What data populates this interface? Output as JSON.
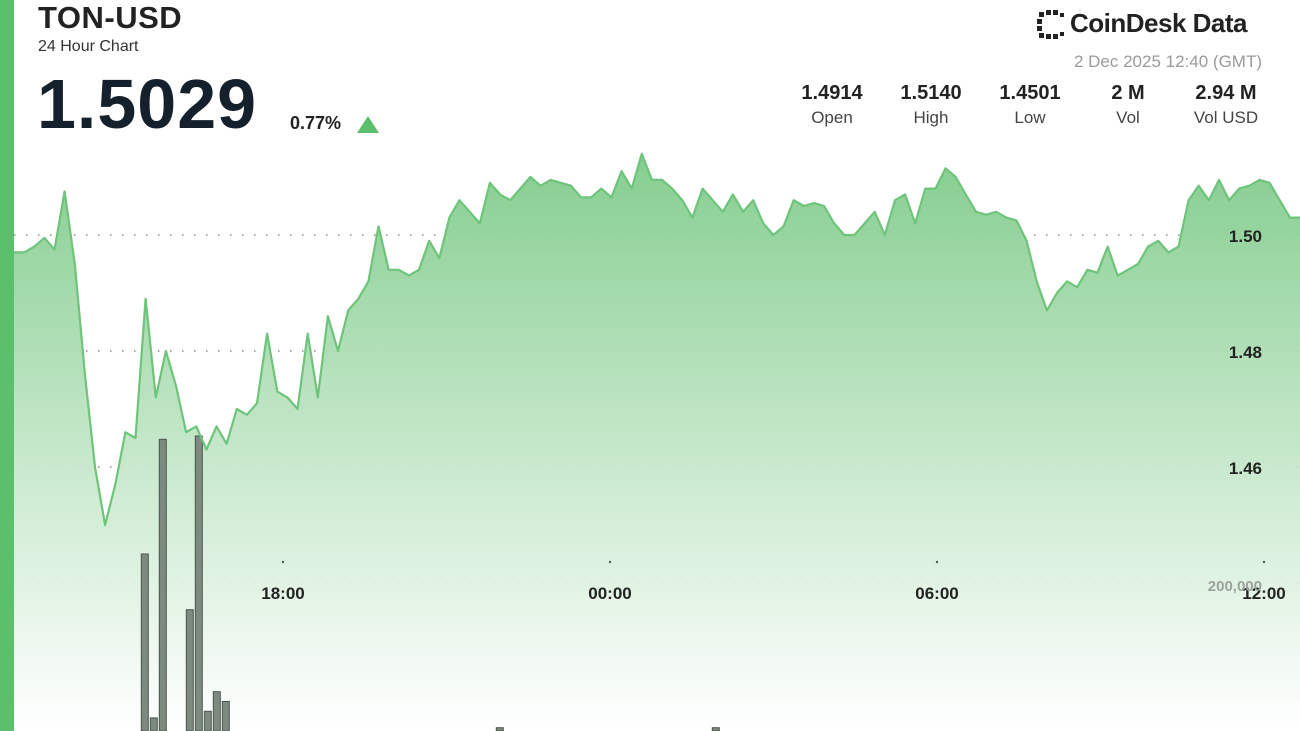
{
  "header": {
    "symbol": "TON-USD",
    "subtitle": "24 Hour Chart",
    "price": "1.5029",
    "change": "0.77%",
    "change_direction_icon": "triangle-up-icon",
    "logo_text": "CoinDesk Data",
    "logo_icon": "coindesk-logo-icon",
    "timestamp": "2 Dec 2025 12:40 (GMT)"
  },
  "stats": [
    {
      "value": "1.4914",
      "label": "Open"
    },
    {
      "value": "1.5140",
      "label": "High"
    },
    {
      "value": "1.4501",
      "label": "Low"
    },
    {
      "value": "2 M",
      "label": "Vol"
    },
    {
      "value": "2.94 M",
      "label": "Vol USD"
    }
  ],
  "colors": {
    "accent": "#5cbf6c",
    "line": "#6ec47a",
    "fill_top": "#7fcb8a",
    "volume_bar": "#7d8a80"
  },
  "chart_data": {
    "type": "area",
    "x_ticks": [
      "18:00",
      "00:00",
      "06:00",
      "12:00"
    ],
    "y_ticks": [
      1.5,
      1.48,
      1.46
    ],
    "ylim": [
      1.44,
      1.52
    ],
    "volume_tick_label": "200,000",
    "grid": "dotted horizontal",
    "price_series": [
      1.497,
      1.497,
      1.498,
      1.4995,
      1.4975,
      1.5075,
      1.495,
      1.476,
      1.46,
      1.45,
      1.457,
      1.466,
      1.465,
      1.489,
      1.472,
      1.48,
      1.474,
      1.466,
      1.467,
      1.463,
      1.467,
      1.464,
      1.47,
      1.469,
      1.471,
      1.483,
      1.473,
      1.472,
      1.47,
      1.483,
      1.472,
      1.486,
      1.48,
      1.487,
      1.489,
      1.492,
      1.5015,
      1.494,
      1.494,
      1.493,
      1.494,
      1.499,
      1.496,
      1.503,
      1.506,
      1.504,
      1.502,
      1.509,
      1.507,
      1.506,
      1.508,
      1.51,
      1.5085,
      1.5095,
      1.509,
      1.5085,
      1.5065,
      1.5065,
      1.508,
      1.5065,
      1.511,
      1.508,
      1.514,
      1.5095,
      1.5095,
      1.508,
      1.506,
      1.503,
      1.508,
      1.506,
      1.504,
      1.507,
      1.504,
      1.506,
      1.502,
      1.5,
      1.5015,
      1.506,
      1.505,
      1.5055,
      1.505,
      1.502,
      1.5,
      1.5,
      1.502,
      1.504,
      1.5,
      1.506,
      1.507,
      1.502,
      1.508,
      1.508,
      1.5115,
      1.51,
      1.507,
      1.504,
      1.5035,
      1.504,
      1.503,
      1.5025,
      1.499,
      1.492,
      1.487,
      1.49,
      1.492,
      1.491,
      1.494,
      1.4935,
      1.498,
      1.493,
      1.494,
      1.495,
      1.498,
      1.499,
      1.497,
      1.498,
      1.506,
      1.5085,
      1.506,
      1.5095,
      1.506,
      1.508,
      1.5085,
      1.5095,
      1.509,
      1.506,
      1.503,
      1.503
    ],
    "volume_series": [
      0,
      0,
      0,
      0,
      0,
      0,
      0,
      0,
      0,
      0,
      0,
      0,
      0,
      0,
      0,
      0,
      0,
      0,
      0,
      0,
      0,
      0,
      0,
      0,
      0,
      0,
      0,
      0,
      0,
      0,
      0,
      0,
      0,
      0,
      0,
      0,
      0,
      0,
      0,
      0,
      0,
      0,
      0,
      0,
      0,
      0,
      0,
      0,
      0,
      0,
      0,
      0,
      0,
      0,
      0,
      0,
      0,
      0,
      0,
      0,
      0,
      0,
      0,
      0,
      0,
      0,
      0,
      0,
      0,
      0,
      0,
      0,
      0,
      0,
      0,
      0,
      0,
      0,
      0,
      0,
      0,
      0,
      0,
      0,
      0,
      0,
      0,
      0,
      0,
      0,
      0,
      0,
      0,
      0,
      0,
      0,
      0,
      0,
      0,
      0,
      0,
      0,
      0,
      0,
      0,
      0,
      0,
      0,
      0,
      0,
      0,
      0,
      0,
      0,
      0,
      0,
      0,
      0,
      0,
      0,
      0,
      0,
      0,
      0,
      0,
      0,
      0,
      0,
      0,
      0,
      0
    ]
  },
  "volume_bars": [
    {
      "x": 0.09,
      "v": 0
    },
    {
      "x": 0.092,
      "v": 0
    },
    {
      "x": 0.099,
      "v": 540000
    },
    {
      "x": 0.106,
      "v": 40000
    },
    {
      "x": 0.113,
      "v": 890000
    },
    {
      "x": 0.134,
      "v": 370000
    },
    {
      "x": 0.141,
      "v": 900000
    },
    {
      "x": 0.148,
      "v": 60000
    },
    {
      "x": 0.155,
      "v": 120000
    },
    {
      "x": 0.162,
      "v": 90000
    },
    {
      "x": 0.375,
      "v": 10000
    },
    {
      "x": 0.543,
      "v": 10000
    }
  ]
}
